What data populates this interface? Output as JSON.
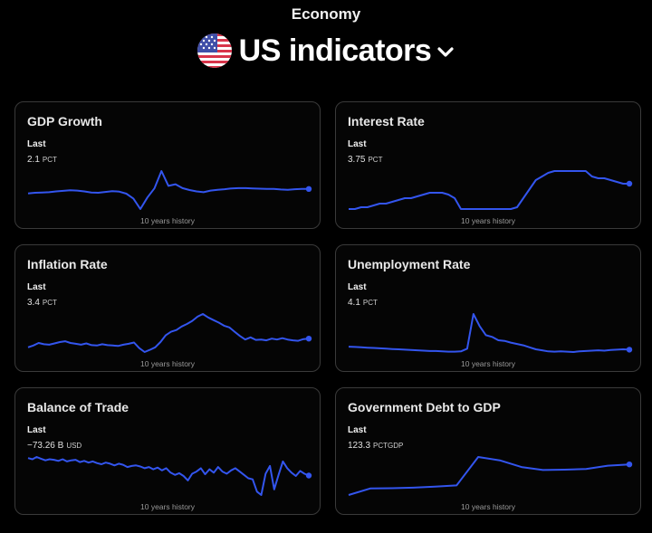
{
  "header": {
    "section": "Economy",
    "title": "US indicators",
    "flag_icon": "us-flag-icon",
    "dropdown_icon": "chevron-down-icon"
  },
  "colors": {
    "background": "#000000",
    "card_border": "#3a3a3a",
    "line": "#3355ee"
  },
  "cards": [
    {
      "title": "GDP Growth",
      "last_label": "Last",
      "value": "2.1",
      "unit": "PCT",
      "history": "10 years history",
      "series": [
        0.5,
        0.7,
        0.8,
        0.9,
        1.2,
        1.4,
        1.6,
        1.5,
        1.2,
        0.8,
        0.7,
        1.0,
        1.3,
        1.1,
        0.4,
        -1.4,
        -5.2,
        -1.0,
        2.3,
        8.6,
        3.2,
        3.8,
        2.4,
        1.7,
        1.2,
        0.9,
        1.5,
        1.8,
        2.0,
        2.3,
        2.4,
        2.4,
        2.3,
        2.2,
        2.1,
        2.1,
        1.9,
        1.8,
        2.0,
        2.1,
        2.1
      ]
    },
    {
      "title": "Interest Rate",
      "last_label": "Last",
      "value": "3.75",
      "unit": "PCT",
      "history": "10 years history",
      "series": [
        0.25,
        0.25,
        0.5,
        0.5,
        0.75,
        1.0,
        1.0,
        1.25,
        1.5,
        1.75,
        1.75,
        2.0,
        2.25,
        2.5,
        2.5,
        2.5,
        2.25,
        1.75,
        0.25,
        0.25,
        0.25,
        0.25,
        0.25,
        0.25,
        0.25,
        0.25,
        0.25,
        0.5,
        1.75,
        3.0,
        4.25,
        4.75,
        5.25,
        5.5,
        5.5,
        5.5,
        5.5,
        5.5,
        5.5,
        4.75,
        4.5,
        4.5,
        4.25,
        4.0,
        3.75,
        3.75
      ]
    },
    {
      "title": "Inflation Rate",
      "last_label": "Last",
      "value": "3.4",
      "unit": "PCT",
      "history": "10 years history",
      "series": [
        1.4,
        1.8,
        2.4,
        2.1,
        2.0,
        2.3,
        2.6,
        2.8,
        2.4,
        2.2,
        2.0,
        2.3,
        1.9,
        1.8,
        2.1,
        1.9,
        1.8,
        1.7,
        2.0,
        2.2,
        2.5,
        1.2,
        0.3,
        0.8,
        1.4,
        2.6,
        4.2,
        5.0,
        5.4,
        6.2,
        6.8,
        7.5,
        8.5,
        9.1,
        8.3,
        7.7,
        7.1,
        6.4,
        6.0,
        5.0,
        4.0,
        3.2,
        3.7,
        3.1,
        3.2,
        3.0,
        3.4,
        3.2,
        3.5,
        3.2,
        3.0,
        2.9,
        3.3,
        3.4
      ]
    },
    {
      "title": "Unemployment Rate",
      "last_label": "Last",
      "value": "4.1",
      "unit": "PCT",
      "history": "10 years history",
      "series": [
        5.0,
        4.9,
        4.8,
        4.7,
        4.6,
        4.5,
        4.4,
        4.3,
        4.2,
        4.1,
        4.0,
        3.9,
        3.8,
        3.7,
        3.7,
        3.6,
        3.5,
        3.5,
        3.6,
        4.4,
        14.7,
        11.1,
        8.4,
        7.9,
        6.9,
        6.7,
        6.2,
        5.8,
        5.4,
        4.8,
        4.2,
        3.9,
        3.6,
        3.5,
        3.6,
        3.5,
        3.4,
        3.6,
        3.7,
        3.8,
        3.9,
        3.8,
        4.0,
        4.1,
        4.2,
        4.1
      ]
    },
    {
      "title": "Balance of Trade",
      "last_label": "Last",
      "value": "−73.26 B",
      "unit": "USD",
      "history": "10 years history",
      "series": [
        -42,
        -44,
        -40,
        -43,
        -46,
        -44,
        -45,
        -47,
        -44,
        -48,
        -46,
        -45,
        -49,
        -47,
        -50,
        -48,
        -51,
        -53,
        -50,
        -52,
        -55,
        -52,
        -54,
        -58,
        -56,
        -55,
        -57,
        -60,
        -58,
        -62,
        -59,
        -64,
        -60,
        -68,
        -72,
        -69,
        -74,
        -82,
        -70,
        -66,
        -60,
        -71,
        -62,
        -68,
        -58,
        -66,
        -70,
        -64,
        -60,
        -66,
        -72,
        -78,
        -80,
        -102,
        -108,
        -70,
        -56,
        -98,
        -72,
        -48,
        -60,
        -68,
        -74,
        -65,
        -70,
        -73.26
      ]
    },
    {
      "title": "Government Debt to GDP",
      "last_label": "Last",
      "value": "123.3",
      "unit": "PCTGDP",
      "history": "10 years history",
      "series": [
        99.8,
        104.8,
        105.0,
        105.4,
        106.2,
        107.2,
        129.0,
        126.4,
        121.3,
        119.0,
        119.3,
        119.8,
        122.3,
        123.3
      ]
    }
  ]
}
